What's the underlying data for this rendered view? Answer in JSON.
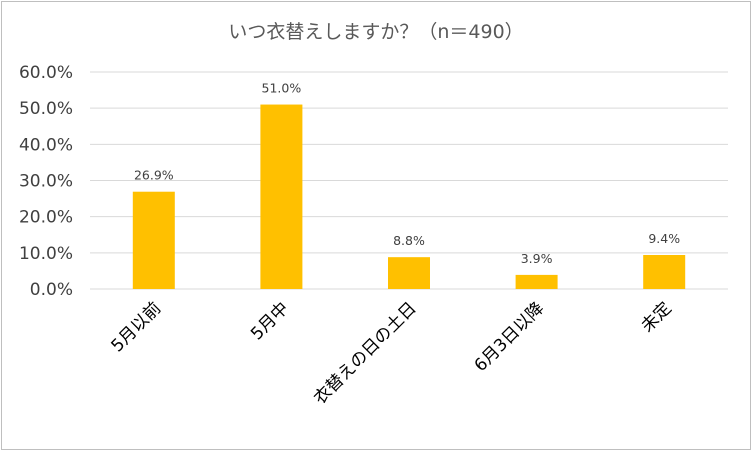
{
  "chart_data": {
    "type": "bar",
    "title": "いつ衣替えしますか？（n＝490）",
    "xlabel": "",
    "ylabel": "",
    "categories": [
      "5月以前",
      "5月中",
      "衣替えの日の土日",
      "6月3日以降",
      "未定"
    ],
    "values": [
      26.9,
      51.0,
      8.8,
      3.9,
      9.4
    ],
    "value_labels": [
      "26.9%",
      "51.0%",
      "8.8%",
      "3.9%",
      "9.4%"
    ],
    "y_ticks": [
      "0.0%",
      "10.0%",
      "20.0%",
      "30.0%",
      "40.0%",
      "50.0%",
      "60.0%"
    ],
    "ylim": [
      0,
      60
    ],
    "grid": true,
    "legend": "none",
    "bar_color": "#FFC000",
    "grid_color": "#d9d9d9"
  }
}
